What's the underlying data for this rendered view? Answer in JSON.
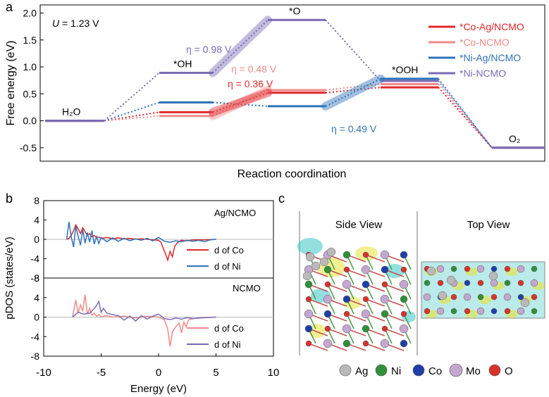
{
  "panel_labels": {
    "a": "a",
    "b": "b",
    "c": "c"
  },
  "colors": {
    "co_ag": "#e0282c",
    "co": "#f08a8a",
    "ni_ag": "#2f73b8",
    "ni": "#7b6bb5",
    "atom_ag": "#b9b9b9",
    "atom_ni": "#2f8f3a",
    "atom_co": "#1f3fa8",
    "atom_mo": "#c4a7cf",
    "atom_o": "#d8322c",
    "iso_yellow": "#e8e23a",
    "iso_cyan": "#38c7c4"
  },
  "chart_data": [
    {
      "type": "line",
      "panel": "a",
      "subtype": "free-energy-step-diagram",
      "annotation_U": {
        "var": "U",
        "text": " = 1.23 V"
      },
      "xlabel": "Reaction coordination",
      "ylabel": "Free energy (eV)",
      "ylim": [
        -0.75,
        2.15
      ],
      "yticks": [
        "-0.5",
        "0.0",
        "0.5",
        "1.0",
        "1.5",
        "2.0"
      ],
      "grid": false,
      "legend_position": "top-right",
      "steps": [
        "H2O",
        "*OH",
        "*O",
        "*OOH",
        "O2"
      ],
      "step_labels": {
        "H2O": "H₂O",
        "OH": "*OH",
        "O": "*O",
        "OOH": "*OOH",
        "O2": "O₂"
      },
      "series": [
        {
          "name": "*Co-Ag/NCMO",
          "color_key": "co_ag",
          "values": [
            0.0,
            0.16,
            0.52,
            0.62,
            -0.5
          ]
        },
        {
          "name": "*Co-NCMO",
          "color_key": "co",
          "values": [
            0.0,
            0.09,
            0.57,
            0.68,
            -0.5
          ]
        },
        {
          "name": "*Ni-Ag/NCMO",
          "color_key": "ni_ag",
          "values": [
            0.0,
            0.34,
            0.27,
            0.78,
            -0.5
          ]
        },
        {
          "name": "*Ni-NCMO",
          "color_key": "ni",
          "values": [
            0.0,
            0.89,
            1.87,
            0.74,
            -0.5
          ]
        }
      ],
      "overpotentials": [
        {
          "text": "η = 0.98 V",
          "color_key": "ni",
          "series": 3,
          "from_step": 1
        },
        {
          "text": "η = 0.48 V",
          "color_key": "co",
          "series": 1,
          "from_step": 1
        },
        {
          "text": "η = 0.36 V",
          "color_key": "co_ag",
          "series": 0,
          "from_step": 1
        },
        {
          "text": "η = 0.49 V",
          "color_key": "ni_ag",
          "series": 2,
          "from_step": 2
        }
      ]
    },
    {
      "type": "line",
      "panel": "b",
      "subtype": "pdos",
      "xlabel": "Energy (eV)",
      "ylabel": "pDOS (states/eV)",
      "xlim": [
        -10,
        10
      ],
      "xticks": [
        "-10",
        "-5",
        "0",
        "5",
        "10"
      ],
      "ylim": [
        -8,
        8
      ],
      "yticks": [
        "8",
        "4",
        "0",
        "-4",
        "-8"
      ],
      "subplots": [
        {
          "title": "Ag/NCMO",
          "series": [
            {
              "name": "d of Co",
              "color_key": "co_ag",
              "x": [
                -8.0,
                -7.8,
                -7.6,
                -7.4,
                -7.2,
                -7.0,
                -6.8,
                -6.6,
                -6.4,
                -6.2,
                -6.0,
                -5.8,
                -5.6,
                -5.4,
                -5.2,
                -5.0,
                -4.5,
                -4.0,
                -3.5,
                -3.0,
                -2.5,
                -2.0,
                -1.5,
                -1.0,
                -0.5,
                0.0,
                0.2,
                0.4,
                0.6,
                0.8,
                1.0,
                1.2,
                1.4,
                1.6,
                1.8,
                2.0,
                2.5,
                3.0,
                4.0,
                5.0
              ],
              "y": [
                0.0,
                0.2,
                0.8,
                1.8,
                3.0,
                2.2,
                1.2,
                2.4,
                1.6,
                0.8,
                1.2,
                0.5,
                0.8,
                0.3,
                0.5,
                0.2,
                0.4,
                0.1,
                0.3,
                0.1,
                0.2,
                0.05,
                0.1,
                0.0,
                -0.1,
                -0.2,
                -0.6,
                -1.8,
                -3.0,
                -4.3,
                -2.5,
                -3.6,
                -1.5,
                -0.8,
                -0.4,
                -0.2,
                -0.3,
                -0.1,
                -0.1,
                0.0
              ]
            },
            {
              "name": "d of Ni",
              "color_key": "ni_ag",
              "x": [
                -8.0,
                -7.8,
                -7.6,
                -7.4,
                -7.2,
                -7.0,
                -6.8,
                -6.6,
                -6.4,
                -6.2,
                -6.0,
                -5.8,
                -5.6,
                -5.4,
                -5.2,
                -5.0,
                -4.5,
                -4.0,
                -3.5,
                -3.0,
                -2.5,
                -2.0,
                -1.5,
                -1.0,
                -0.5,
                0.0,
                0.5,
                1.0,
                1.5,
                2.0,
                2.5,
                3.0,
                3.5,
                4.0,
                4.5,
                5.0
              ],
              "y": [
                0.0,
                3.6,
                0.5,
                -1.6,
                2.8,
                0.6,
                -1.2,
                2.0,
                -0.8,
                1.4,
                -0.6,
                1.8,
                -1.0,
                0.6,
                -0.9,
                0.4,
                -0.5,
                0.3,
                -0.4,
                0.2,
                -0.3,
                0.1,
                -0.2,
                0.2,
                -0.3,
                0.4,
                -0.4,
                -0.6,
                -0.3,
                -0.5,
                -0.2,
                -0.4,
                -0.2,
                -0.5,
                -0.1,
                0.0
              ]
            }
          ]
        },
        {
          "title": "NCMO",
          "series": [
            {
              "name": "d of Co",
              "color_key": "co",
              "x": [
                -7.5,
                -7.2,
                -7.0,
                -6.8,
                -6.6,
                -6.4,
                -6.2,
                -6.0,
                -5.8,
                -5.6,
                -5.4,
                -5.2,
                -5.0,
                -4.5,
                -4.0,
                -3.0,
                -2.0,
                -1.0,
                0.0,
                0.5,
                0.8,
                1.0,
                1.2,
                1.5,
                1.8,
                2.0,
                2.2,
                2.4,
                2.6,
                3.0,
                4.0,
                5.0
              ],
              "y": [
                0.0,
                3.5,
                0.8,
                2.5,
                1.2,
                4.6,
                0.6,
                1.8,
                0.4,
                0.8,
                0.2,
                0.5,
                0.1,
                0.3,
                0.0,
                0.2,
                -0.2,
                0.2,
                0.0,
                -0.5,
                -2.5,
                -6.0,
                -3.0,
                -2.0,
                -1.2,
                -3.2,
                -1.0,
                -2.0,
                -0.6,
                -0.3,
                -0.1,
                0.0
              ]
            },
            {
              "name": "d of Ni",
              "color_key": "ni",
              "x": [
                -7.5,
                -7.0,
                -6.5,
                -6.0,
                -5.5,
                -5.2,
                -5.0,
                -4.8,
                -4.5,
                -4.0,
                -3.5,
                -3.0,
                -2.5,
                -2.0,
                -1.5,
                -1.0,
                -0.5,
                0.0,
                0.5,
                1.0,
                1.5,
                2.0,
                2.5,
                3.0,
                4.0,
                5.0
              ],
              "y": [
                0.0,
                1.0,
                0.6,
                0.8,
                2.0,
                3.2,
                1.0,
                1.8,
                0.8,
                0.5,
                0.3,
                -0.6,
                0.2,
                -0.8,
                0.3,
                -0.4,
                0.2,
                0.6,
                -0.3,
                -0.5,
                -0.2,
                -0.4,
                -0.1,
                -0.3,
                -0.1,
                0.0
              ]
            }
          ]
        }
      ]
    }
  ],
  "panel_c": {
    "side_title": "Side View",
    "top_title": "Top View",
    "legend": [
      {
        "label": "Ag",
        "color_key": "atom_ag"
      },
      {
        "label": "Ni",
        "color_key": "atom_ni"
      },
      {
        "label": "Co",
        "color_key": "atom_co"
      },
      {
        "label": "Mo",
        "color_key": "atom_mo"
      },
      {
        "label": "O",
        "color_key": "atom_o"
      }
    ]
  }
}
